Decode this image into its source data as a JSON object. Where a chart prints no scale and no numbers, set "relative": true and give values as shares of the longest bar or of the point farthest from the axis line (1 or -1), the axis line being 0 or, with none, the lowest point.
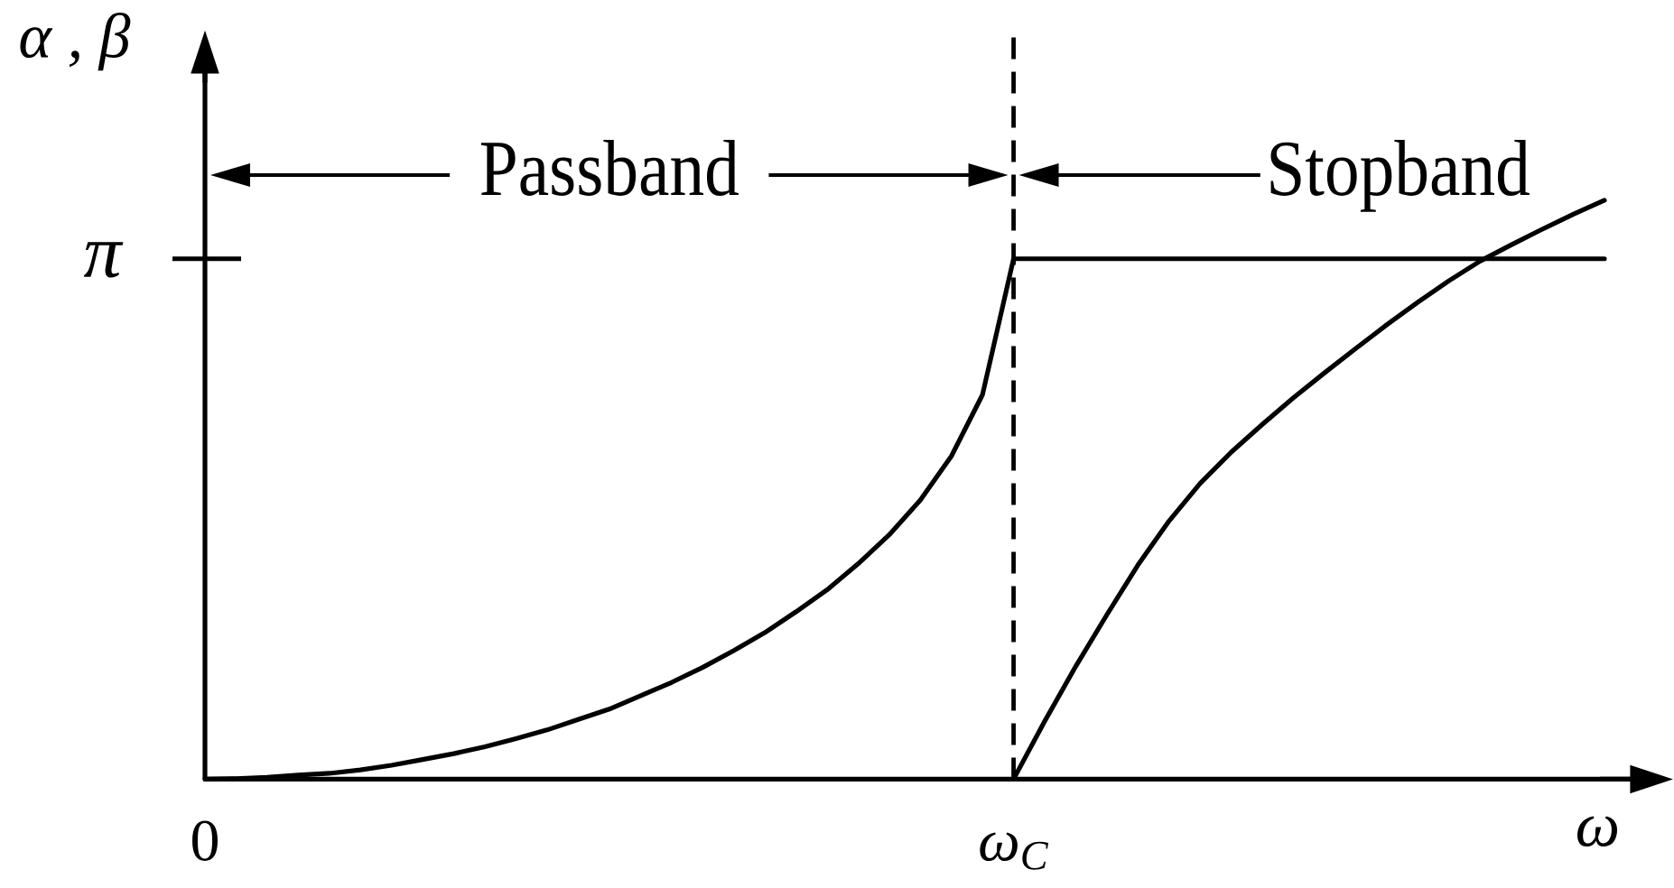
{
  "chart_data": {
    "type": "line",
    "xlabel": "ω",
    "ylabel": "α , β",
    "relative": true,
    "categories": [
      "0",
      null,
      null,
      null,
      null,
      null,
      null,
      null,
      null,
      null,
      null,
      null,
      null,
      null,
      null,
      null,
      null,
      null,
      null,
      null,
      null,
      null,
      null,
      null,
      null,
      null,
      "ω$_{C}$",
      null,
      null,
      null,
      null,
      null,
      null,
      null,
      null,
      null,
      null,
      null,
      null,
      null,
      null,
      null,
      null,
      null,
      null,
      null
    ],
    "series": [
      {
        "color": "#000000",
        "values": [
          0,
          0.001,
          0.003,
          0.007,
          0.01,
          0.016,
          0.024,
          0.034,
          0.044,
          0.056,
          0.07,
          0.085,
          0.103,
          0.121,
          0.144,
          0.167,
          0.193,
          0.222,
          0.253,
          0.289,
          0.327,
          0.372,
          0.422,
          0.482,
          0.558,
          0.664,
          0.899,
          0.899,
          0.899,
          0.899,
          0.899,
          0.899,
          0.899,
          0.899,
          0.899,
          0.899,
          0.899,
          0.899,
          0.899,
          0.899,
          0.899,
          0.899,
          0.899,
          0.899,
          0.899,
          0.899
        ]
      },
      {
        "color": "#000000",
        "values": [
          null,
          null,
          null,
          null,
          null,
          null,
          null,
          null,
          null,
          null,
          null,
          null,
          null,
          null,
          null,
          null,
          null,
          null,
          null,
          null,
          null,
          null,
          null,
          null,
          null,
          null,
          0,
          0.1,
          0.195,
          0.284,
          0.37,
          0.446,
          0.511,
          0.565,
          0.613,
          0.659,
          0.702,
          0.744,
          0.785,
          0.824,
          0.861,
          0.895,
          0.923,
          0.95,
          0.976,
          1
        ]
      }
    ],
    "ref_lines": [
      {
        "axis": "x",
        "value": "ω$_{C}$",
        "line_style": "dashed",
        "color": "#000000"
      }
    ],
    "annotations": [
      "π",
      "Passband",
      "Stopband"
    ]
  }
}
